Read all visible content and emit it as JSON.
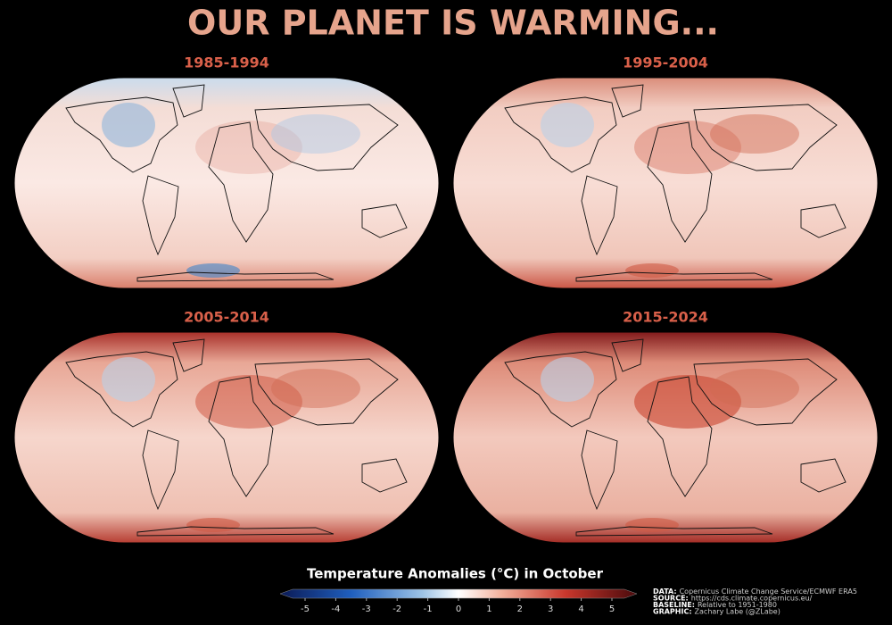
{
  "title": "OUR PLANET IS WARMING...",
  "panels": [
    {
      "label": "1985-1994"
    },
    {
      "label": "1995-2004"
    },
    {
      "label": "2005-2014"
    },
    {
      "label": "2015-2024"
    }
  ],
  "colorbar": {
    "label": "Temperature Anomalies (°C) in October",
    "range": [
      -5,
      5
    ],
    "ticks": [
      -5,
      -4,
      -3,
      -2,
      -1,
      0,
      1,
      2,
      3,
      4,
      5
    ]
  },
  "credits": [
    {
      "key": "DATA:",
      "text": "Copernicus Climate Change Service/ECMWF ERA5"
    },
    {
      "key": "SOURCE:",
      "text": "https://cds.climate.copernicus.eu/"
    },
    {
      "key": "BASELINE:",
      "text": "Relative to 1951-1980"
    },
    {
      "key": "GRAPHIC:",
      "text": "Zachary Labe (@ZLabe)"
    }
  ]
}
